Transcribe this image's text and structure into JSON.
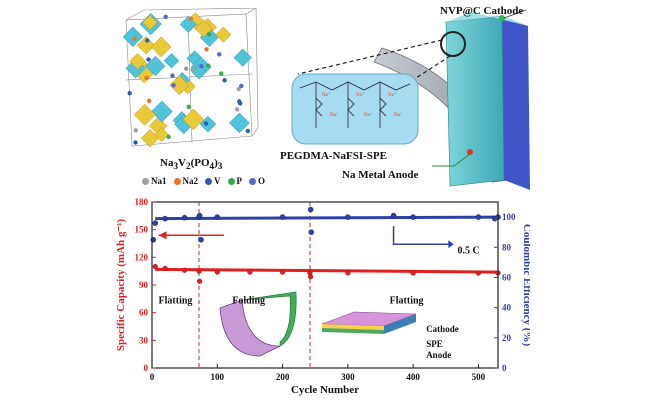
{
  "top": {
    "crystal": {
      "formula_base": "Na",
      "formula_sub1": "3",
      "formula_mid": "V",
      "formula_sub2": "2",
      "formula_end": "(PO",
      "formula_sub3": "4",
      "formula_close": ")",
      "formula_sub4": "3",
      "atoms": [
        {
          "label": "Na1",
          "color": "#9e9e9e"
        },
        {
          "label": "Na2",
          "color": "#e8742c"
        },
        {
          "label": "V",
          "color": "#2e5bb8"
        },
        {
          "label": "P",
          "color": "#3aa84a"
        },
        {
          "label": "O",
          "color": "#5566cc"
        }
      ]
    },
    "cell": {
      "cathode_label": "NVP@C Cathode",
      "electrolyte_label": "PEGDMA-NaFSI-SPE",
      "anode_label": "Na Metal Anode"
    }
  },
  "chart": {
    "ylabel_left": "Specific Capacity (mAh g⁻¹)",
    "ylabel_right": "Coulombic Efficiency (%)",
    "xlabel": "Cycle Number",
    "rate": "0.5 C",
    "phase_labels": [
      "Flatting",
      "Folding",
      "Flatting"
    ],
    "stack_labels": [
      "Cathode",
      "SPE",
      "Anode"
    ],
    "colors": {
      "capacity": "#e02020",
      "efficiency": "#2f3fa8"
    }
  },
  "chart_data": {
    "type": "scatter",
    "x_ticks": [
      0,
      100,
      200,
      300,
      400,
      500
    ],
    "y_left_ticks": [
      0,
      30,
      60,
      90,
      120,
      150,
      180
    ],
    "y_right_ticks": [
      0,
      20,
      40,
      60,
      80,
      100
    ],
    "xlim": [
      0,
      530
    ],
    "ylim_left": [
      0,
      180
    ],
    "ylim_right": [
      0,
      110
    ],
    "phase_boundaries": [
      72,
      242
    ],
    "series": [
      {
        "axis": "left",
        "points": [
          [
            5,
            110
          ],
          [
            20,
            108
          ],
          [
            50,
            106
          ],
          [
            72,
            105
          ],
          [
            73,
            94
          ],
          [
            100,
            104
          ],
          [
            150,
            104
          ],
          [
            200,
            104
          ],
          [
            242,
            103
          ],
          [
            243,
            99
          ],
          [
            300,
            103
          ],
          [
            400,
            103
          ],
          [
            500,
            103
          ],
          [
            530,
            103
          ]
        ]
      },
      {
        "axis": "right",
        "points": [
          [
            2,
            85
          ],
          [
            5,
            96
          ],
          [
            20,
            99
          ],
          [
            50,
            99.6
          ],
          [
            72,
            100
          ],
          [
            73,
            101
          ],
          [
            75,
            85
          ],
          [
            100,
            100
          ],
          [
            200,
            100
          ],
          [
            243,
            105
          ],
          [
            244,
            90
          ],
          [
            300,
            100
          ],
          [
            370,
            101
          ],
          [
            400,
            100
          ],
          [
            500,
            100
          ],
          [
            525,
            99
          ],
          [
            530,
            100
          ]
        ]
      }
    ]
  }
}
